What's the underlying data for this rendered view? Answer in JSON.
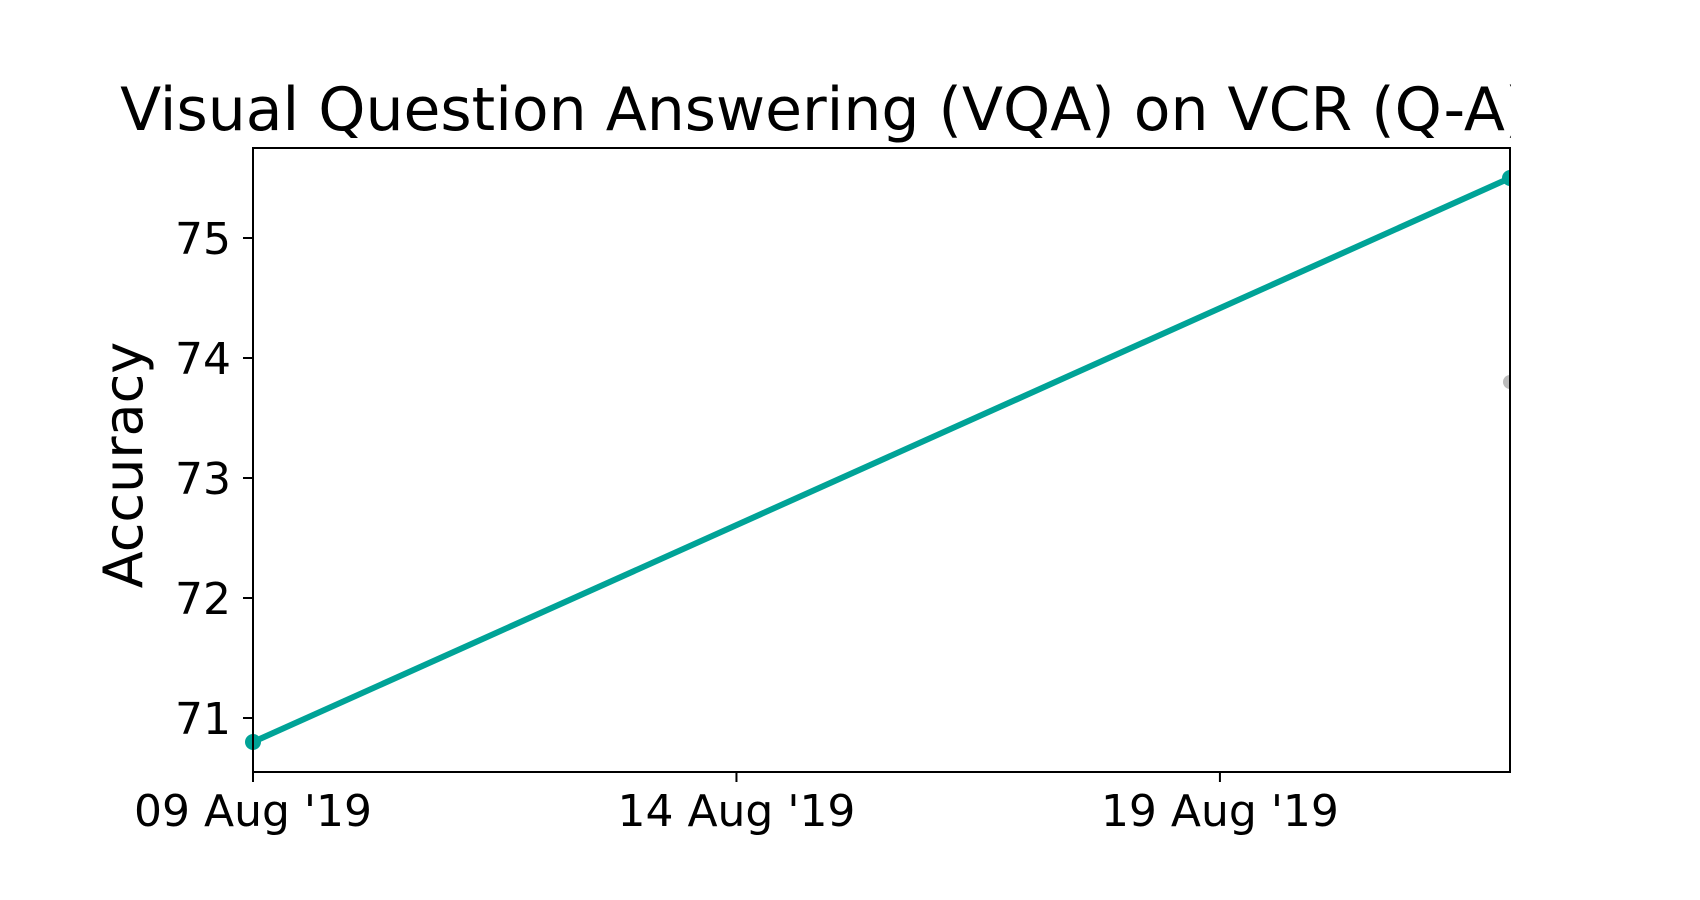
{
  "chart_data": {
    "type": "line",
    "title": "Visual Question Answering (VQA) on VCR (Q-A) dev",
    "xlabel": "",
    "ylabel": "Accuracy",
    "x_tick_labels": [
      "09 Aug '19",
      "14 Aug '19",
      "19 Aug '19"
    ],
    "x_ticks": [
      "2019-08-09",
      "2019-08-14",
      "2019-08-19"
    ],
    "y_ticks": [
      71,
      72,
      73,
      74,
      75
    ],
    "xlim": [
      "2019-08-09",
      "2019-08-22"
    ],
    "ylim": [
      70.55,
      75.75
    ],
    "grid": false,
    "series": [
      {
        "points": [
          {
            "x": "2019-08-09",
            "y": 70.8
          },
          {
            "x": "2019-08-22",
            "y": 75.5
          }
        ],
        "color": "#00a397"
      }
    ],
    "other_points": [
      {
        "x": "2019-08-22",
        "y": 73.8,
        "color": "#bbbbbb"
      }
    ]
  }
}
